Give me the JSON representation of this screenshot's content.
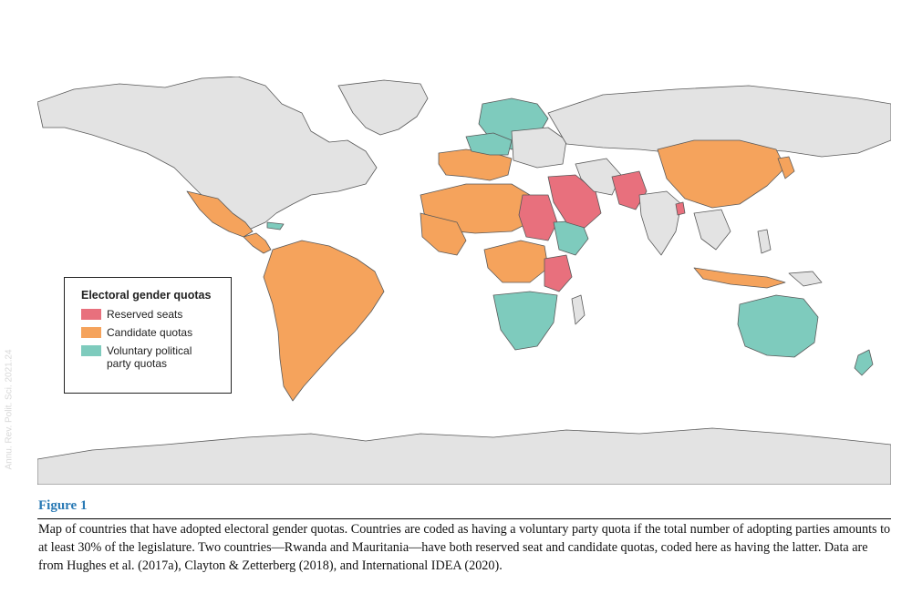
{
  "figure": {
    "label": "Figure 1",
    "caption": "Map of countries that have adopted electoral gender quotas. Countries are coded as having a voluntary party quota if the total number of adopting parties amounts to at least 30% of the legislature. Two countries—Rwanda and Mauritania—have both reserved seat and candidate quotas, coded here as having the latter. Data are from Hughes et al. (2017a), Clayton & Zetterberg (2018), and International IDEA (2020)."
  },
  "legend": {
    "title": "Electoral gender quotas",
    "items": [
      {
        "label": "Reserved seats",
        "color": "#e8707d"
      },
      {
        "label": "Candidate quotas",
        "color": "#f5a35c"
      },
      {
        "label": "Voluntary political\nparty quotas",
        "color": "#7ecbbd"
      }
    ]
  },
  "colors": {
    "no_quota": "#e3e3e3",
    "border": "#5a5a5a",
    "ocean": "#ffffff"
  },
  "watermark": "Annu. Rev. Polit. Sci. 2021.24"
}
